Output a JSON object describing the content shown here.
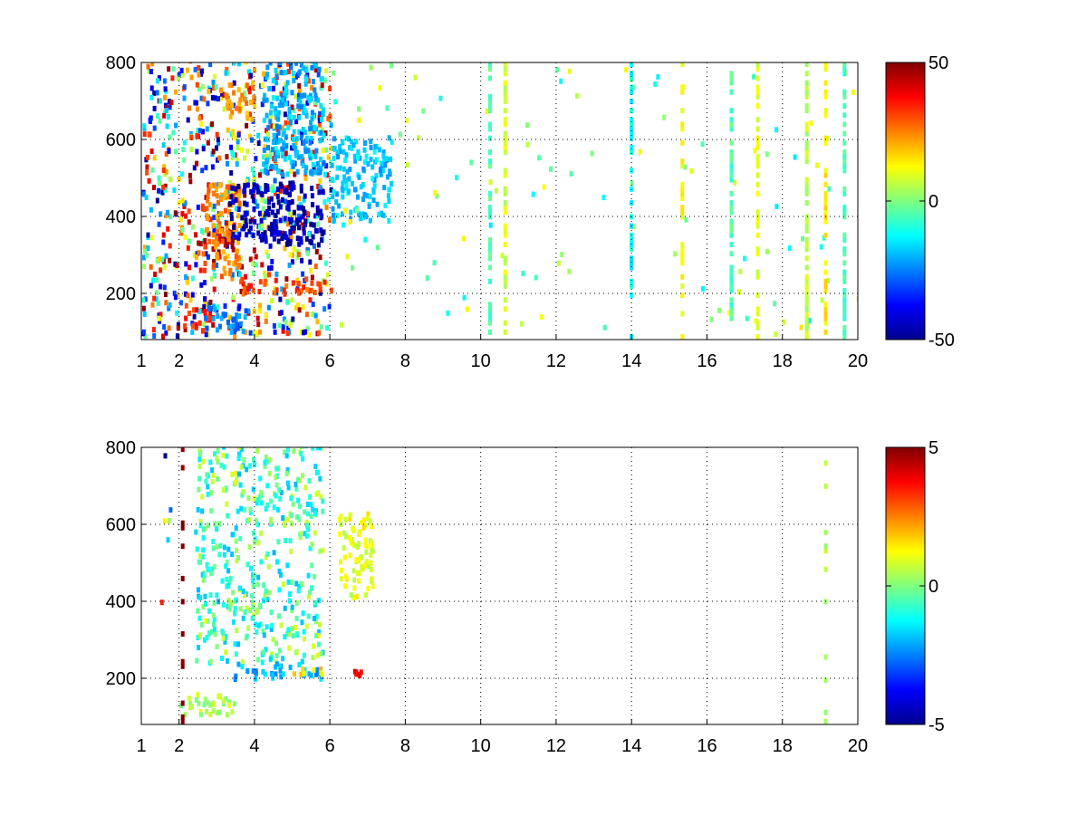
{
  "chart_data": [
    {
      "type": "heatmap",
      "panel": "top",
      "x_ticks": [
        1,
        2,
        4,
        6,
        8,
        10,
        12,
        14,
        16,
        18,
        20
      ],
      "y_ticks": [
        200,
        400,
        600,
        800
      ],
      "xlim": [
        1,
        20
      ],
      "ylim": [
        80,
        800
      ],
      "grid": true,
      "colorbar": {
        "min": -50,
        "max": 50,
        "ticks": [
          -50,
          0,
          50
        ],
        "colormap": "jet",
        "placement": "right"
      },
      "features": [
        {
          "x": [
            1.0,
            6.0
          ],
          "y": [
            80,
            800
          ],
          "value_range": [
            -50,
            50
          ],
          "description_value": "dense mixed field"
        },
        {
          "x": [
            2.4,
            3.4
          ],
          "y": [
            300,
            360
          ],
          "value": 45
        },
        {
          "x": [
            2.6,
            3.6
          ],
          "y": [
            240,
            480
          ],
          "value": 25
        },
        {
          "x": [
            3.3,
            5.8
          ],
          "y": [
            320,
            480
          ],
          "value": -45
        },
        {
          "x": [
            3.2,
            4.0
          ],
          "y": [
            640,
            740
          ],
          "value": 22
        },
        {
          "x": [
            3.4,
            5.8
          ],
          "y": [
            190,
            230
          ],
          "value": 30
        },
        {
          "x": [
            2.0,
            2.8
          ],
          "y": [
            95,
            150
          ],
          "value": 35
        },
        {
          "x": [
            2.6,
            3.8
          ],
          "y": [
            90,
            160
          ],
          "value": -25
        },
        {
          "x": [
            4.2,
            5.8
          ],
          "y": [
            500,
            800
          ],
          "value": -20
        },
        {
          "x": [
            6.0,
            7.6
          ],
          "y": [
            380,
            600
          ],
          "value": -18
        },
        {
          "x": [
            6.0,
            20.0
          ],
          "y": [
            80,
            800
          ],
          "value_range": [
            -15,
            15
          ],
          "description_value": "sparse scattered cells"
        }
      ],
      "column_stripes": [
        {
          "x": 10.2,
          "value": -5
        },
        {
          "x": 10.6,
          "value": 8
        },
        {
          "x": 13.95,
          "value": -12
        },
        {
          "x": 15.3,
          "value": 12
        },
        {
          "x": 16.6,
          "value": -5
        },
        {
          "x": 17.3,
          "value": 10
        },
        {
          "x": 18.6,
          "value": 6
        },
        {
          "x": 19.1,
          "value": 14
        },
        {
          "x": 19.6,
          "value": -6
        }
      ]
    },
    {
      "type": "heatmap",
      "panel": "bottom",
      "x_ticks": [
        1,
        2,
        4,
        6,
        8,
        10,
        12,
        14,
        16,
        18,
        20
      ],
      "y_ticks": [
        200,
        400,
        600,
        800
      ],
      "xlim": [
        1,
        20
      ],
      "ylim": [
        80,
        800
      ],
      "grid": true,
      "colorbar": {
        "min": -5,
        "max": 5,
        "ticks": [
          -5,
          0,
          5
        ],
        "colormap": "jet",
        "placement": "right"
      },
      "features": [
        {
          "x": [
            2.4,
            5.8
          ],
          "y": [
            230,
            800
          ],
          "value_range": [
            -2,
            1
          ],
          "description_value": "dense mixed field"
        },
        {
          "x": [
            3.4,
            5.8
          ],
          "y": [
            190,
            230
          ],
          "value": -2
        },
        {
          "x": [
            2.0,
            3.5
          ],
          "y": [
            95,
            150
          ],
          "value": 0.5
        },
        {
          "x": [
            5.0,
            5.8
          ],
          "y": [
            195,
            220
          ],
          "value": 1.5
        },
        {
          "x": [
            6.2,
            7.1
          ],
          "y": [
            400,
            620
          ],
          "value": 1
        },
        {
          "x": [
            6.6,
            6.8
          ],
          "y": [
            200,
            215
          ],
          "value": 4
        },
        {
          "x": [
            1.4,
            1.75
          ],
          "y": [
            100,
            780
          ],
          "value_range": [
            -5,
            5
          ],
          "description_value": "sparse extreme cells"
        }
      ],
      "column_stripes": [
        {
          "x": 2.05,
          "value": 5
        },
        {
          "x": 19.1,
          "value": 0.5
        }
      ]
    }
  ]
}
